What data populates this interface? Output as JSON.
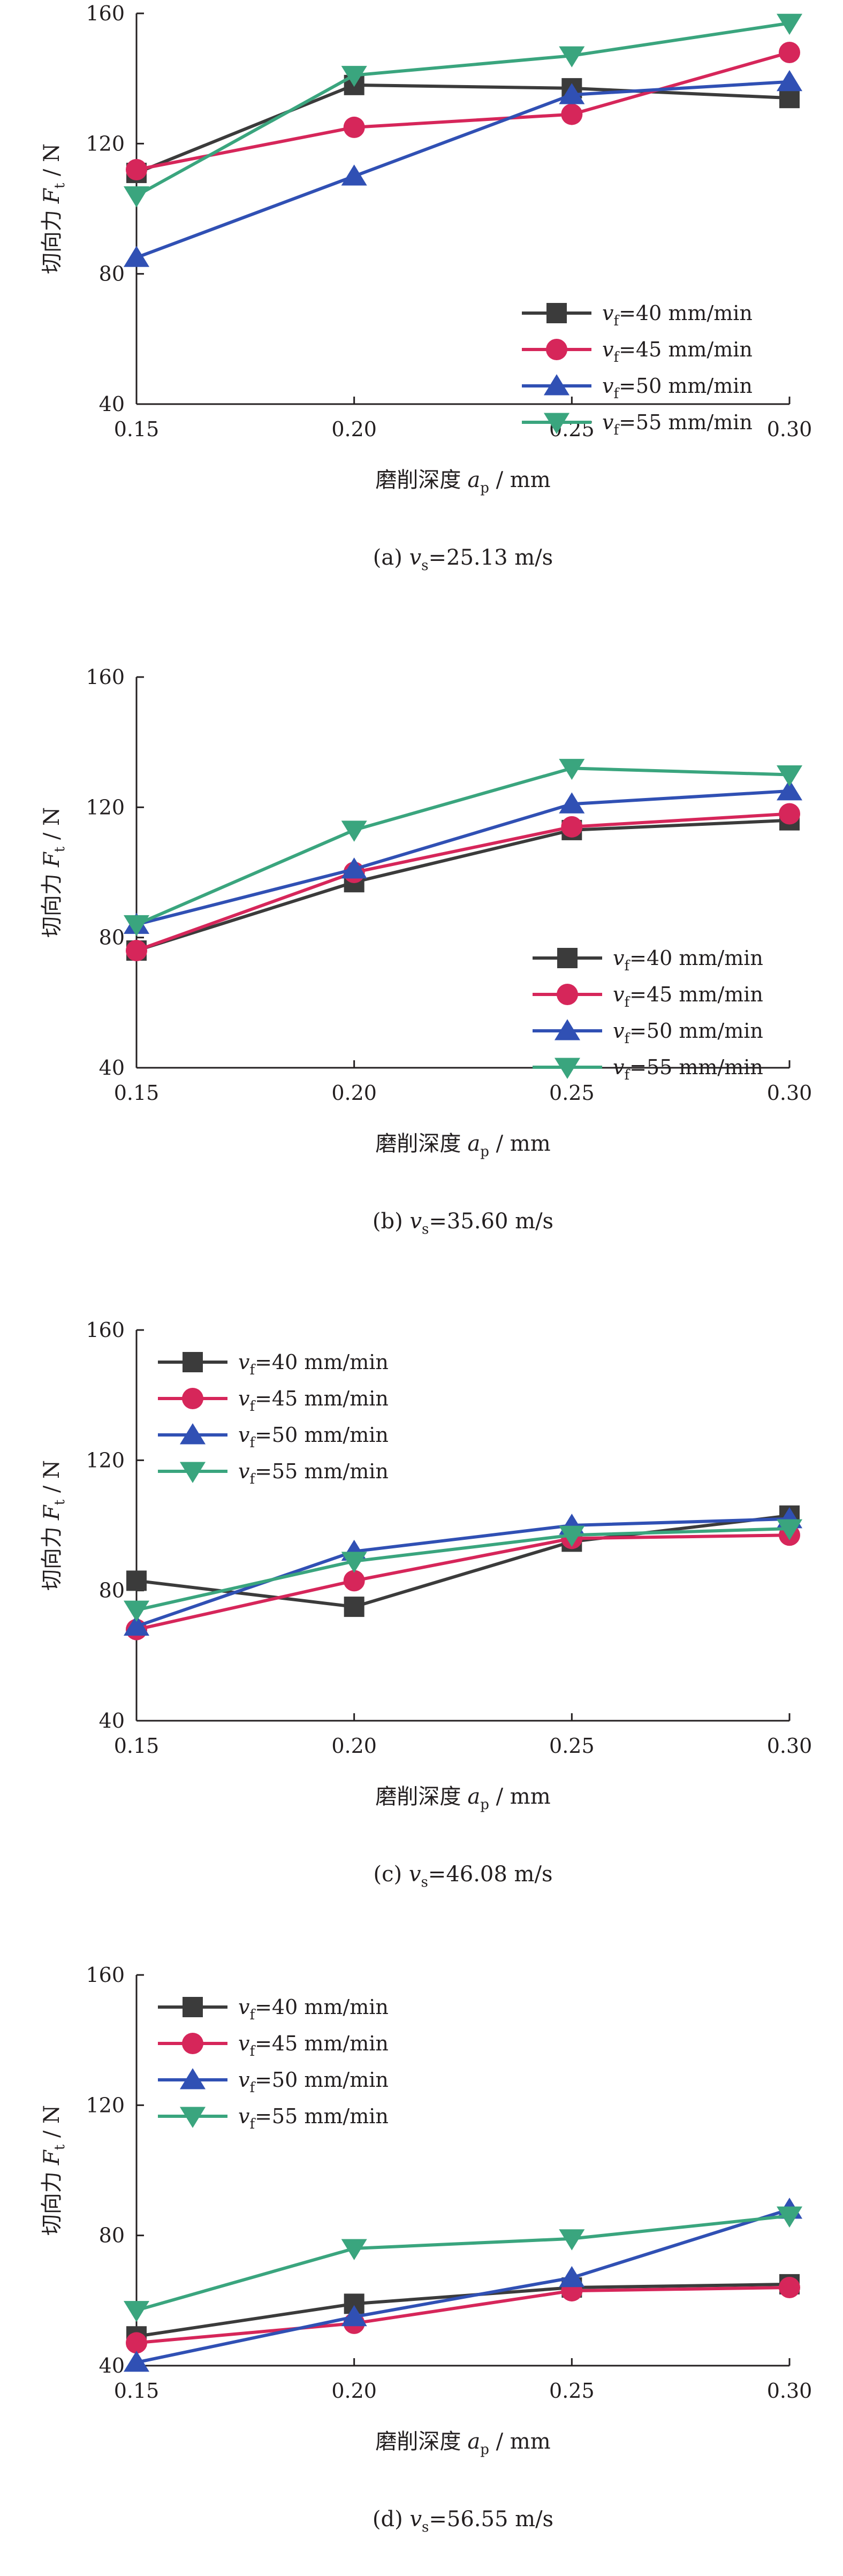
{
  "chart_data": [
    {
      "type": "line",
      "title": "",
      "caption": "(a) vs=25.13 m/s",
      "caption_parts": {
        "prefix": "(a) ",
        "var": "v",
        "sub": "s",
        "rest": "=25.13 m/s"
      },
      "xlabel": {
        "main": "磨削深度",
        "var": "a",
        "sub": "p",
        "unit": " / mm"
      },
      "ylabel": {
        "main": "切向力",
        "var": "F",
        "sub": "t",
        "unit": " / N"
      },
      "x": [
        0.15,
        0.2,
        0.25,
        0.3
      ],
      "x_tick_labels": [
        "0.15",
        "0.20",
        "0.25",
        "0.30"
      ],
      "xlim": [
        0.15,
        0.3
      ],
      "ylim": [
        40,
        160
      ],
      "y_ticks": [
        40,
        80,
        120,
        160
      ],
      "grid": false,
      "legend_position": "center-right",
      "series": [
        {
          "name": "vf=40 mm/min",
          "legend": {
            "var": "v",
            "sub": "f",
            "rest": "=40 mm/min"
          },
          "marker": "square",
          "color": "#3b3b3b",
          "values": [
            111,
            138,
            137,
            134
          ]
        },
        {
          "name": "vf=45 mm/min",
          "legend": {
            "var": "v",
            "sub": "f",
            "rest": "=45 mm/min"
          },
          "marker": "circle",
          "color": "#d6265a",
          "values": [
            112,
            125,
            129,
            148
          ]
        },
        {
          "name": "vf=50 mm/min",
          "legend": {
            "var": "v",
            "sub": "f",
            "rest": "=50 mm/min"
          },
          "marker": "triangle-up",
          "color": "#3050b4",
          "values": [
            85,
            110,
            135,
            139
          ]
        },
        {
          "name": "vf=55 mm/min",
          "legend": {
            "var": "v",
            "sub": "f",
            "rest": "=55 mm/min"
          },
          "marker": "triangle-down",
          "color": "#3aa57e",
          "values": [
            104,
            141,
            147,
            157
          ]
        }
      ]
    },
    {
      "type": "line",
      "title": "",
      "caption": "(b) vs=35.60 m/s",
      "caption_parts": {
        "prefix": "(b) ",
        "var": "v",
        "sub": "s",
        "rest": "=35.60 m/s"
      },
      "xlabel": {
        "main": "磨削深度",
        "var": "a",
        "sub": "p",
        "unit": " / mm"
      },
      "ylabel": {
        "main": "切向力",
        "var": "F",
        "sub": "t",
        "unit": " / N"
      },
      "x": [
        0.15,
        0.2,
        0.25,
        0.3
      ],
      "x_tick_labels": [
        "0.15",
        "0.20",
        "0.25",
        "0.30"
      ],
      "xlim": [
        0.15,
        0.3
      ],
      "ylim": [
        40,
        160
      ],
      "y_ticks": [
        40,
        80,
        120,
        160
      ],
      "grid": false,
      "legend_position": "bottom-right",
      "series": [
        {
          "name": "vf=40 mm/min",
          "legend": {
            "var": "v",
            "sub": "f",
            "rest": "=40 mm/min"
          },
          "marker": "square",
          "color": "#3b3b3b",
          "values": [
            76,
            97,
            113,
            116
          ]
        },
        {
          "name": "vf=45 mm/min",
          "legend": {
            "var": "v",
            "sub": "f",
            "rest": "=45 mm/min"
          },
          "marker": "circle",
          "color": "#d6265a",
          "values": [
            76,
            100,
            114,
            118
          ]
        },
        {
          "name": "vf=50 mm/min",
          "legend": {
            "var": "v",
            "sub": "f",
            "rest": "=50 mm/min"
          },
          "marker": "triangle-up",
          "color": "#3050b4",
          "values": [
            84,
            101,
            121,
            125
          ]
        },
        {
          "name": "vf=55 mm/min",
          "legend": {
            "var": "v",
            "sub": "f",
            "rest": "=55 mm/min"
          },
          "marker": "triangle-down",
          "color": "#3aa57e",
          "values": [
            84,
            113,
            132,
            130
          ]
        }
      ]
    },
    {
      "type": "line",
      "title": "",
      "caption": "(c) vs=46.08 m/s",
      "caption_parts": {
        "prefix": "(c) ",
        "var": "v",
        "sub": "s",
        "rest": "=46.08 m/s"
      },
      "xlabel": {
        "main": "磨削深度",
        "var": "a",
        "sub": "p",
        "unit": " / mm"
      },
      "ylabel": {
        "main": "切向力",
        "var": "F",
        "sub": "t",
        "unit": " / N"
      },
      "x": [
        0.15,
        0.2,
        0.25,
        0.3
      ],
      "x_tick_labels": [
        "0.15",
        "0.20",
        "0.25",
        "0.30"
      ],
      "xlim": [
        0.15,
        0.3
      ],
      "ylim": [
        40,
        160
      ],
      "y_ticks": [
        40,
        80,
        120,
        160
      ],
      "grid": false,
      "legend_position": "top-left",
      "series": [
        {
          "name": "vf=40 mm/min",
          "legend": {
            "var": "v",
            "sub": "f",
            "rest": "=40 mm/min"
          },
          "marker": "square",
          "color": "#3b3b3b",
          "values": [
            83,
            75,
            95,
            103
          ]
        },
        {
          "name": "vf=45 mm/min",
          "legend": {
            "var": "v",
            "sub": "f",
            "rest": "=45 mm/min"
          },
          "marker": "circle",
          "color": "#d6265a",
          "values": [
            68,
            83,
            96,
            97
          ]
        },
        {
          "name": "vf=50 mm/min",
          "legend": {
            "var": "v",
            "sub": "f",
            "rest": "=50 mm/min"
          },
          "marker": "triangle-up",
          "color": "#3050b4",
          "values": [
            69,
            92,
            100,
            102
          ]
        },
        {
          "name": "vf=55 mm/min",
          "legend": {
            "var": "v",
            "sub": "f",
            "rest": "=55 mm/min"
          },
          "marker": "triangle-down",
          "color": "#3aa57e",
          "values": [
            74,
            89,
            97,
            99
          ]
        }
      ]
    },
    {
      "type": "line",
      "title": "",
      "caption": "(d) vs=56.55 m/s",
      "caption_parts": {
        "prefix": "(d) ",
        "var": "v",
        "sub": "s",
        "rest": "=56.55 m/s"
      },
      "xlabel": {
        "main": "磨削深度",
        "var": "a",
        "sub": "p",
        "unit": " / mm"
      },
      "ylabel": {
        "main": "切向力",
        "var": "F",
        "sub": "t",
        "unit": " / N"
      },
      "x": [
        0.15,
        0.2,
        0.25,
        0.3
      ],
      "x_tick_labels": [
        "0.15",
        "0.20",
        "0.25",
        "0.30"
      ],
      "xlim": [
        0.15,
        0.3
      ],
      "ylim": [
        40,
        160
      ],
      "y_ticks": [
        40,
        80,
        120,
        160
      ],
      "grid": false,
      "legend_position": "top-left",
      "series": [
        {
          "name": "vf=40 mm/min",
          "legend": {
            "var": "v",
            "sub": "f",
            "rest": "=40 mm/min"
          },
          "marker": "square",
          "color": "#3b3b3b",
          "values": [
            49,
            59,
            64,
            65
          ]
        },
        {
          "name": "vf=45 mm/min",
          "legend": {
            "var": "v",
            "sub": "f",
            "rest": "=45 mm/min"
          },
          "marker": "circle",
          "color": "#d6265a",
          "values": [
            47,
            53,
            63,
            64
          ]
        },
        {
          "name": "vf=50 mm/min",
          "legend": {
            "var": "v",
            "sub": "f",
            "rest": "=50 mm/min"
          },
          "marker": "triangle-up",
          "color": "#3050b4",
          "values": [
            41,
            55,
            67,
            88
          ]
        },
        {
          "name": "vf=55 mm/min",
          "legend": {
            "var": "v",
            "sub": "f",
            "rest": "=55 mm/min"
          },
          "marker": "triangle-down",
          "color": "#3aa57e",
          "values": [
            57,
            76,
            79,
            86
          ]
        }
      ]
    }
  ]
}
